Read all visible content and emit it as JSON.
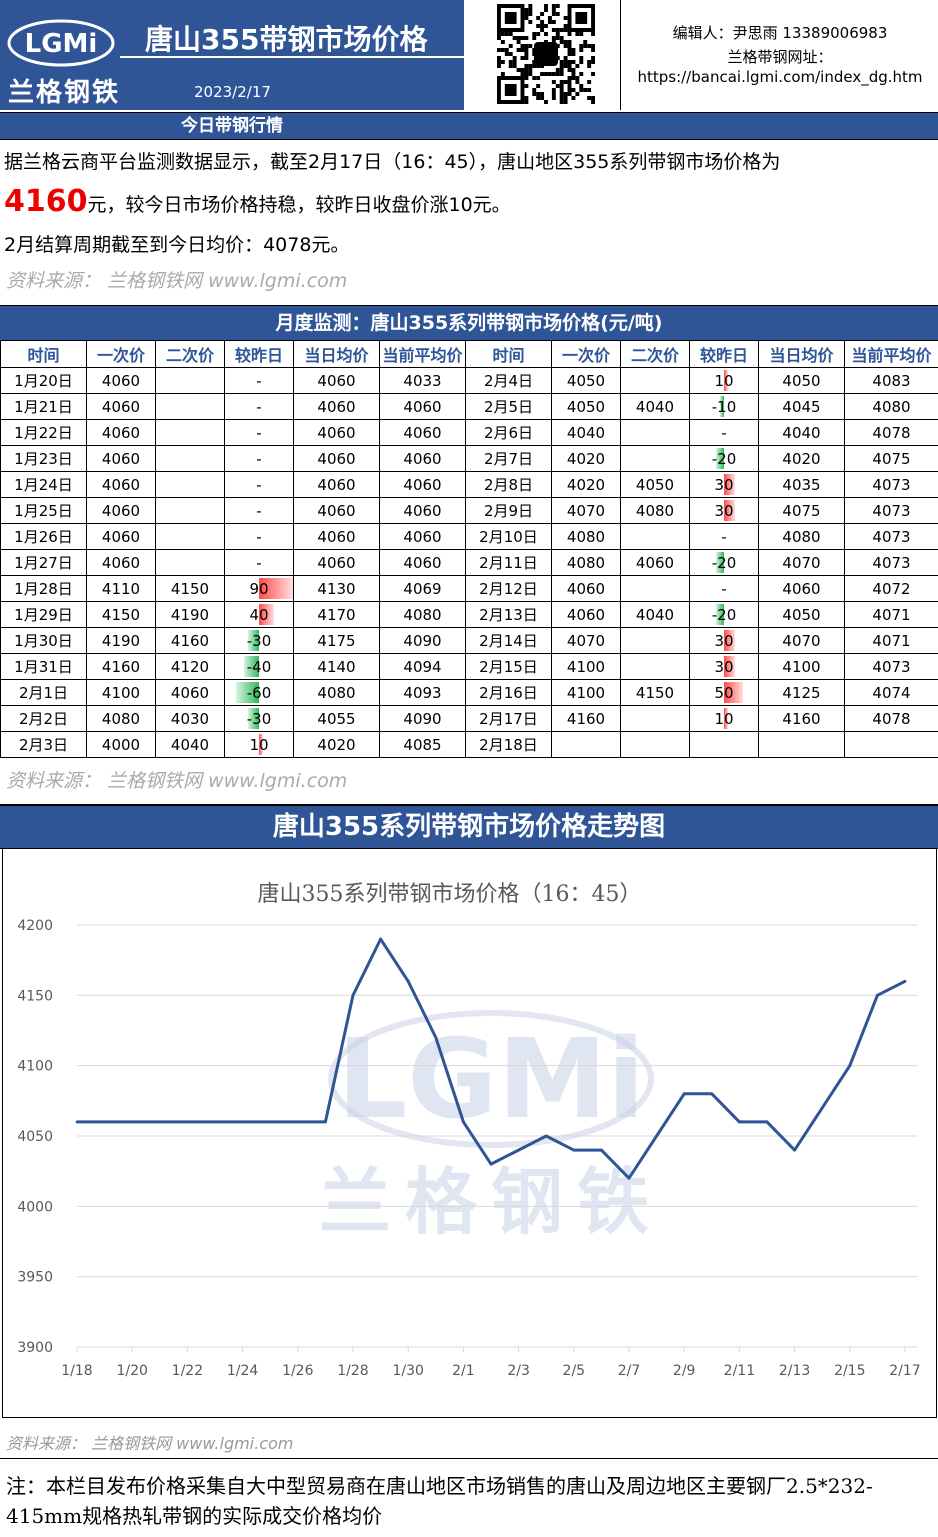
{
  "header": {
    "logo_text": "LGMi",
    "brand": "兰格钢铁",
    "title": "唐山355带钢市场价格",
    "date": "2023/2/17",
    "editor": "编辑人：尹思雨 13389006983",
    "site_label": "兰格带钢网址：",
    "site_url": "https://bancai.lgmi.com/index_dg.htm"
  },
  "today": {
    "section_title": "今日带钢行情",
    "line1": "据兰格云商平台监测数据显示，截至2月17日（16：45），唐山地区355系列带钢市场价格为",
    "price": "4160",
    "line2_rest": "元，较今日市场价格持稳，较昨日收盘价涨10元。",
    "line3": "2月结算周期截至到今日均价：4078元。"
  },
  "source_text": "资料来源： 兰格钢铁网 www.lgmi.com",
  "monthly": {
    "section_title": "月度监测：唐山355系列带钢市场价格(元/吨)",
    "headers": [
      "时间",
      "一次价",
      "二次价",
      "较昨日",
      "当日均价",
      "当前平均价",
      "时间",
      "一次价",
      "二次价",
      "较昨日",
      "当日均价",
      "当前平均价"
    ],
    "rows_left": [
      [
        "1月20日",
        "4060",
        "",
        "-",
        "4060",
        "4033"
      ],
      [
        "1月21日",
        "4060",
        "",
        "-",
        "4060",
        "4060"
      ],
      [
        "1月22日",
        "4060",
        "",
        "-",
        "4060",
        "4060"
      ],
      [
        "1月23日",
        "4060",
        "",
        "-",
        "4060",
        "4060"
      ],
      [
        "1月24日",
        "4060",
        "",
        "-",
        "4060",
        "4060"
      ],
      [
        "1月25日",
        "4060",
        "",
        "-",
        "4060",
        "4060"
      ],
      [
        "1月26日",
        "4060",
        "",
        "-",
        "4060",
        "4060"
      ],
      [
        "1月27日",
        "4060",
        "",
        "-",
        "4060",
        "4060"
      ],
      [
        "1月28日",
        "4110",
        "4150",
        "90",
        "4130",
        "4069"
      ],
      [
        "1月29日",
        "4150",
        "4190",
        "40",
        "4170",
        "4080"
      ],
      [
        "1月30日",
        "4190",
        "4160",
        "-30",
        "4175",
        "4090"
      ],
      [
        "1月31日",
        "4160",
        "4120",
        "-40",
        "4140",
        "4094"
      ],
      [
        "2月1日",
        "4100",
        "4060",
        "-60",
        "4080",
        "4093"
      ],
      [
        "2月2日",
        "4080",
        "4030",
        "-30",
        "4055",
        "4090"
      ],
      [
        "2月3日",
        "4000",
        "4040",
        "10",
        "4020",
        "4085"
      ]
    ],
    "rows_right": [
      [
        "2月4日",
        "4050",
        "",
        "10",
        "4050",
        "4083"
      ],
      [
        "2月5日",
        "4050",
        "4040",
        "-10",
        "4045",
        "4080"
      ],
      [
        "2月6日",
        "4040",
        "",
        "-",
        "4040",
        "4078"
      ],
      [
        "2月7日",
        "4020",
        "",
        "-20",
        "4020",
        "4075"
      ],
      [
        "2月8日",
        "4020",
        "4050",
        "30",
        "4035",
        "4073"
      ],
      [
        "2月9日",
        "4070",
        "4080",
        "30",
        "4075",
        "4073"
      ],
      [
        "2月10日",
        "4080",
        "",
        "-",
        "4080",
        "4073"
      ],
      [
        "2月11日",
        "4080",
        "4060",
        "-20",
        "4070",
        "4073"
      ],
      [
        "2月12日",
        "4060",
        "",
        "-",
        "4060",
        "4072"
      ],
      [
        "2月13日",
        "4060",
        "4040",
        "-20",
        "4050",
        "4071"
      ],
      [
        "2月14日",
        "4070",
        "",
        "30",
        "4070",
        "4071"
      ],
      [
        "2月15日",
        "4100",
        "",
        "30",
        "4100",
        "4073"
      ],
      [
        "2月16日",
        "4100",
        "4150",
        "50",
        "4125",
        "4074"
      ],
      [
        "2月17日",
        "4160",
        "",
        "10",
        "4160",
        "4078"
      ],
      [
        "2月18日",
        "",
        "",
        "",
        "",
        ""
      ]
    ]
  },
  "chart_section_title": "唐山355系列带钢市场价格走势图",
  "chart_data": {
    "type": "line",
    "title": "唐山355系列带钢市场价格（16：45）",
    "x_tick_labels": [
      "1/18",
      "1/20",
      "1/22",
      "1/24",
      "1/26",
      "1/28",
      "1/30",
      "2/1",
      "2/3",
      "2/5",
      "2/7",
      "2/9",
      "2/11",
      "2/13",
      "2/15",
      "2/17"
    ],
    "y_ticks": [
      3900,
      3950,
      4000,
      4050,
      4100,
      4150,
      4200
    ],
    "ylim": [
      3900,
      4200
    ],
    "x": [
      "1/18",
      "1/19",
      "1/20",
      "1/21",
      "1/22",
      "1/23",
      "1/24",
      "1/25",
      "1/26",
      "1/27",
      "1/28",
      "1/29",
      "1/30",
      "1/31",
      "2/1",
      "2/2",
      "2/3",
      "2/4",
      "2/5",
      "2/6",
      "2/7",
      "2/8",
      "2/9",
      "2/10",
      "2/11",
      "2/12",
      "2/13",
      "2/14",
      "2/15",
      "2/16",
      "2/17"
    ],
    "series": [
      {
        "values": [
          4060,
          4060,
          4060,
          4060,
          4060,
          4060,
          4060,
          4060,
          4060,
          4060,
          4150,
          4190,
          4160,
          4120,
          4060,
          4030,
          4040,
          4050,
          4040,
          4040,
          4020,
          4050,
          4080,
          4080,
          4060,
          4060,
          4040,
          4070,
          4100,
          4150,
          4160
        ]
      }
    ],
    "line_color": "#2f5597",
    "grid": "horizontal",
    "watermark": [
      "LGMi",
      "兰格钢铁"
    ]
  },
  "chart_source_text": "资料来源： 兰格钢铁网 www.lgmi.com",
  "note": "注：本栏目发布价格采集自大中型贸易商在唐山地区市场销售的唐山及周边地区主要钢厂2.5*232-415mm规格热轧带钢的实际成交价格均价",
  "colors": {
    "header_blue": "#2f5597",
    "up_red": "#ff4a4a",
    "down_green": "#2fb85a",
    "price_red": "#e00000"
  }
}
